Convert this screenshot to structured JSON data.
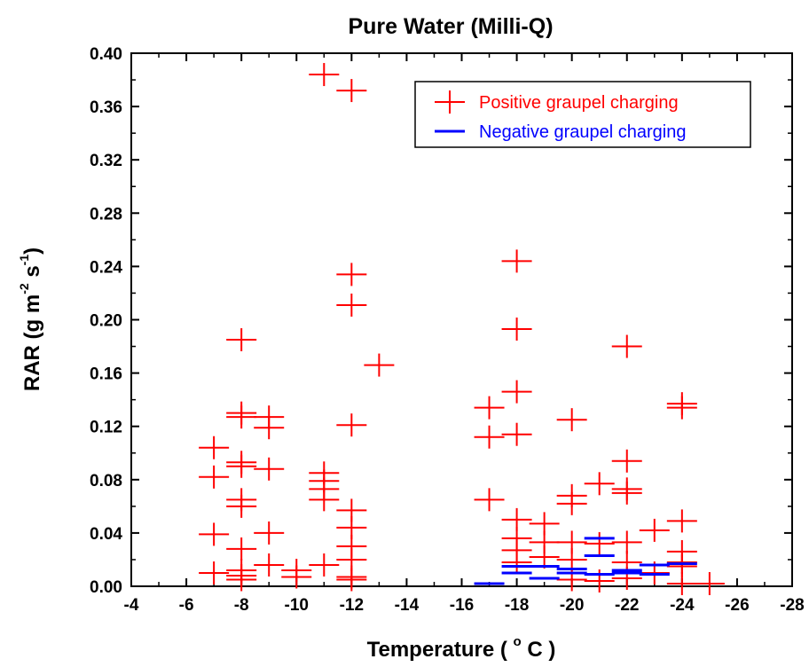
{
  "chart_data": {
    "type": "scatter",
    "title": "Pure Water (Milli-Q)",
    "xlabel": "Temperature ( °C )",
    "xlabel_parts": {
      "main": "Temperature ( ",
      "sup": "o",
      "unit": " C )"
    },
    "ylabel": "RAR (g m-2 s-1)",
    "ylabel_parts": {
      "a": "RAR (g m",
      "sup1": "-2",
      "b": " s",
      "sup2": "-1",
      "c": ")"
    },
    "xlim": [
      -4,
      -28
    ],
    "ylim": [
      0.0,
      0.4
    ],
    "x_ticks": [
      -4,
      -6,
      -8,
      -10,
      -12,
      -14,
      -16,
      -18,
      -20,
      -22,
      -24,
      -26,
      -28
    ],
    "x_tick_labels": [
      "-4",
      "-6",
      "-8",
      "-10",
      "-12",
      "-14",
      "-16",
      "-18",
      "-20",
      "-22",
      "-24",
      "-26",
      "-28"
    ],
    "y_ticks": [
      0.0,
      0.04,
      0.08,
      0.12,
      0.16,
      0.2,
      0.24,
      0.28,
      0.32,
      0.36,
      0.4
    ],
    "y_tick_labels": [
      "0.00",
      "0.04",
      "0.08",
      "0.12",
      "0.16",
      "0.20",
      "0.24",
      "0.28",
      "0.32",
      "0.36",
      "0.40"
    ],
    "grid": false,
    "legend": {
      "position": "top-right"
    },
    "series": [
      {
        "name": "Positive graupel charging",
        "marker": "+",
        "color": "#ff0000",
        "points": [
          [
            -7,
            0.104
          ],
          [
            -7,
            0.082
          ],
          [
            -7,
            0.039
          ],
          [
            -7,
            0.01
          ],
          [
            -8,
            0.185
          ],
          [
            -8,
            0.13
          ],
          [
            -8,
            0.127
          ],
          [
            -8,
            0.093
          ],
          [
            -8,
            0.09
          ],
          [
            -8,
            0.065
          ],
          [
            -8,
            0.06
          ],
          [
            -8,
            0.028
          ],
          [
            -8,
            0.012
          ],
          [
            -8,
            0.008
          ],
          [
            -8,
            0.005
          ],
          [
            -9,
            0.127
          ],
          [
            -9,
            0.119
          ],
          [
            -9,
            0.088
          ],
          [
            -9,
            0.04
          ],
          [
            -9,
            0.016
          ],
          [
            -10,
            0.012
          ],
          [
            -10,
            0.007
          ],
          [
            -11,
            0.384
          ],
          [
            -11,
            0.085
          ],
          [
            -11,
            0.079
          ],
          [
            -11,
            0.073
          ],
          [
            -11,
            0.065
          ],
          [
            -11,
            0.016
          ],
          [
            -12,
            0.372
          ],
          [
            -12,
            0.234
          ],
          [
            -12,
            0.211
          ],
          [
            -12,
            0.121
          ],
          [
            -12,
            0.057
          ],
          [
            -12,
            0.044
          ],
          [
            -12,
            0.03
          ],
          [
            -12,
            0.02
          ],
          [
            -12,
            0.007
          ],
          [
            -12,
            0.005
          ],
          [
            -13,
            0.166
          ],
          [
            -17,
            0.134
          ],
          [
            -17,
            0.112
          ],
          [
            -17,
            0.065
          ],
          [
            -18,
            0.244
          ],
          [
            -18,
            0.193
          ],
          [
            -18,
            0.146
          ],
          [
            -18,
            0.114
          ],
          [
            -18,
            0.05
          ],
          [
            -18,
            0.036
          ],
          [
            -18,
            0.027
          ],
          [
            -18,
            0.018
          ],
          [
            -19,
            0.047
          ],
          [
            -19,
            0.033
          ],
          [
            -19,
            0.022
          ],
          [
            -20,
            0.125
          ],
          [
            -20,
            0.068
          ],
          [
            -20,
            0.062
          ],
          [
            -20,
            0.033
          ],
          [
            -20,
            0.02
          ],
          [
            -20,
            0.005
          ],
          [
            -21,
            0.077
          ],
          [
            -21,
            0.032
          ],
          [
            -21,
            0.004
          ],
          [
            -22,
            0.18
          ],
          [
            -22,
            0.094
          ],
          [
            -22,
            0.073
          ],
          [
            -22,
            0.07
          ],
          [
            -22,
            0.033
          ],
          [
            -22,
            0.018
          ],
          [
            -22,
            0.006
          ],
          [
            -23,
            0.042
          ],
          [
            -23,
            0.01
          ],
          [
            -24,
            0.137
          ],
          [
            -24,
            0.134
          ],
          [
            -24,
            0.049
          ],
          [
            -24,
            0.026
          ],
          [
            -24,
            0.018
          ],
          [
            -24,
            0.015
          ],
          [
            -24,
            0.002
          ],
          [
            -25,
            0.002
          ]
        ]
      },
      {
        "name": "Negative graupel charging",
        "marker": "-",
        "color": "#0000ff",
        "points": [
          [
            -17,
            0.002
          ],
          [
            -18,
            0.015
          ],
          [
            -18,
            0.01
          ],
          [
            -19,
            0.015
          ],
          [
            -19,
            0.006
          ],
          [
            -20,
            0.013
          ],
          [
            -20,
            0.01
          ],
          [
            -21,
            0.036
          ],
          [
            -21,
            0.023
          ],
          [
            -21,
            0.009
          ],
          [
            -22,
            0.012
          ],
          [
            -22,
            0.01
          ],
          [
            -23,
            0.016
          ],
          [
            -23,
            0.009
          ],
          [
            -24,
            0.017
          ]
        ]
      }
    ]
  }
}
